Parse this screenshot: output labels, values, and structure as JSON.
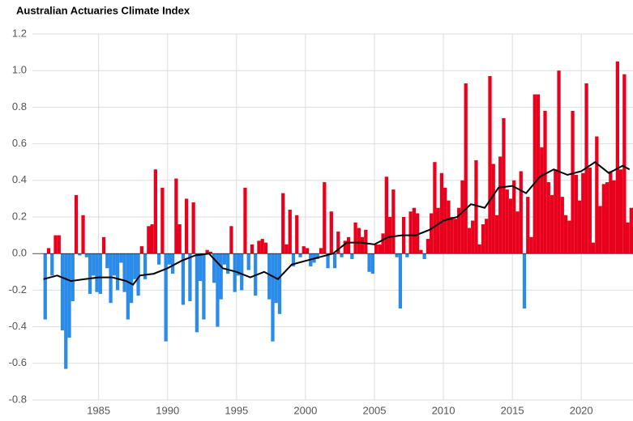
{
  "chart_data": {
    "type": "bar",
    "title": "Australian Actuaries Climate Index",
    "x": [
      1981,
      1981.25,
      1981.5,
      1981.75,
      1982,
      1982.25,
      1982.5,
      1982.75,
      1983,
      1983.25,
      1983.5,
      1983.75,
      1984,
      1984.25,
      1984.5,
      1984.75,
      1985,
      1985.25,
      1985.5,
      1985.75,
      1986,
      1986.25,
      1986.5,
      1986.75,
      1987,
      1987.25,
      1987.5,
      1987.75,
      1988,
      1988.25,
      1988.5,
      1988.75,
      1989,
      1989.25,
      1989.5,
      1989.75,
      1990,
      1990.25,
      1990.5,
      1990.75,
      1991,
      1991.25,
      1991.5,
      1991.75,
      1992,
      1992.25,
      1992.5,
      1992.75,
      1993,
      1993.25,
      1993.5,
      1993.75,
      1994,
      1994.25,
      1994.5,
      1994.75,
      1995,
      1995.25,
      1995.5,
      1995.75,
      1996,
      1996.25,
      1996.5,
      1996.75,
      1997,
      1997.25,
      1997.5,
      1997.75,
      1998,
      1998.25,
      1998.5,
      1998.75,
      1999,
      1999.25,
      1999.5,
      1999.75,
      2000,
      2000.25,
      2000.5,
      2000.75,
      2001,
      2001.25,
      2001.5,
      2001.75,
      2002,
      2002.25,
      2002.5,
      2002.75,
      2003,
      2003.25,
      2003.5,
      2003.75,
      2004,
      2004.25,
      2004.5,
      2004.75,
      2005,
      2005.25,
      2005.5,
      2005.75,
      2006,
      2006.25,
      2006.5,
      2006.75,
      2007,
      2007.25,
      2007.5,
      2007.75,
      2008,
      2008.25,
      2008.5,
      2008.75,
      2009,
      2009.25,
      2009.5,
      2009.75,
      2010,
      2010.25,
      2010.5,
      2010.75,
      2011,
      2011.25,
      2011.5,
      2011.75,
      2012,
      2012.25,
      2012.5,
      2012.75,
      2013,
      2013.25,
      2013.5,
      2013.75,
      2014,
      2014.25,
      2014.5,
      2014.75,
      2015,
      2015.25,
      2015.5,
      2015.75,
      2016,
      2016.25,
      2016.5,
      2016.75,
      2017,
      2017.25,
      2017.5,
      2017.75,
      2018,
      2018.25,
      2018.5,
      2018.75,
      2019,
      2019.25,
      2019.5,
      2019.75,
      2020,
      2020.25,
      2020.5,
      2020.75,
      2021,
      2021.25,
      2021.5,
      2021.75,
      2022,
      2022.25,
      2022.5,
      2022.75,
      2023,
      2023.25,
      2023.5
    ],
    "values": [
      -0.36,
      0.03,
      -0.12,
      0.1,
      0.1,
      -0.42,
      -0.63,
      -0.46,
      -0.26,
      0.32,
      -0.01,
      0.21,
      -0.02,
      -0.22,
      -0.12,
      -0.21,
      -0.22,
      0.09,
      -0.08,
      -0.27,
      -0.12,
      -0.2,
      -0.05,
      -0.21,
      -0.36,
      -0.27,
      -0.14,
      -0.23,
      0.04,
      -0.14,
      0.15,
      0.16,
      0.46,
      -0.06,
      0.36,
      -0.48,
      -0.06,
      -0.11,
      0.41,
      0.16,
      -0.28,
      0.3,
      -0.26,
      0.28,
      -0.43,
      -0.15,
      -0.36,
      0.02,
      0.01,
      -0.16,
      -0.4,
      -0.25,
      -0.06,
      -0.11,
      0.15,
      -0.21,
      -0.12,
      -0.2,
      0.36,
      -0.09,
      0.05,
      -0.23,
      0.07,
      0.08,
      0.06,
      -0.25,
      -0.48,
      -0.27,
      -0.33,
      0.33,
      0.05,
      0.24,
      -0.07,
      0.21,
      -0.02,
      0.04,
      0.03,
      -0.07,
      -0.05,
      -0.03,
      0.03,
      0.39,
      -0.08,
      0.23,
      -0.08,
      0.12,
      -0.02,
      0.07,
      0.09,
      -0.03,
      0.17,
      0.14,
      0.09,
      0.13,
      -0.1,
      -0.11,
      0.05,
      0.05,
      0.11,
      0.42,
      0.2,
      0.35,
      -0.02,
      -0.3,
      0.2,
      -0.02,
      0.23,
      0.25,
      0.22,
      0.02,
      -0.03,
      0.08,
      0.22,
      0.5,
      0.25,
      0.44,
      0.36,
      0.29,
      0.2,
      0.19,
      0.25,
      0.4,
      0.93,
      0.14,
      0.18,
      0.51,
      0.05,
      0.16,
      0.19,
      0.97,
      0.49,
      0.21,
      0.53,
      0.74,
      0.35,
      0.3,
      0.4,
      0.23,
      0.45,
      -0.3,
      0.31,
      0.09,
      0.87,
      0.87,
      0.58,
      0.78,
      0.39,
      0.32,
      0.46,
      1.0,
      0.31,
      0.21,
      0.18,
      0.78,
      0.43,
      0.29,
      0.44,
      0.93,
      0.47,
      0.06,
      0.64,
      0.26,
      0.38,
      0.39,
      0.45,
      0.4,
      1.05,
      0.46,
      0.98,
      0.17,
      0.25
    ],
    "positive_color": "#e8001c",
    "negative_color": "#2a8be8",
    "line": {
      "color": "#000000",
      "x": [
        1981,
        1982,
        1983,
        1984,
        1985,
        1986,
        1987,
        1987.5,
        1988,
        1989,
        1990,
        1991,
        1992,
        1993,
        1994,
        1995,
        1996,
        1997,
        1998,
        1999,
        2000,
        2001,
        2002,
        2003,
        2004,
        2005,
        2006,
        2007,
        2008,
        2009,
        2010,
        2011,
        2012,
        2013,
        2014,
        2015,
        2016,
        2017,
        2018,
        2019,
        2020,
        2021,
        2022,
        2023,
        2023.5
      ],
      "values": [
        -0.14,
        -0.12,
        -0.15,
        -0.14,
        -0.13,
        -0.13,
        -0.15,
        -0.17,
        -0.12,
        -0.11,
        -0.08,
        -0.04,
        -0.01,
        0.0,
        -0.08,
        -0.1,
        -0.13,
        -0.1,
        -0.14,
        -0.06,
        -0.04,
        -0.02,
        0.0,
        0.06,
        0.06,
        0.05,
        0.09,
        0.1,
        0.1,
        0.13,
        0.18,
        0.2,
        0.27,
        0.25,
        0.36,
        0.37,
        0.33,
        0.42,
        0.46,
        0.43,
        0.45,
        0.5,
        0.44,
        0.48,
        0.46
      ]
    },
    "xlim": [
      1980.2,
      2023.75
    ],
    "ylim": [
      -0.8,
      1.2
    ],
    "xticks": [
      1985,
      1990,
      1995,
      2000,
      2005,
      2010,
      2015,
      2020
    ],
    "yticks": [
      1.2,
      {
        "value": 1,
        "label": "1.0"
      },
      0.8,
      0.6,
      0.4,
      0.2,
      {
        "value": 0,
        "label": "0.0"
      },
      -0.2,
      -0.4,
      -0.6,
      -0.8
    ],
    "grid": true
  }
}
